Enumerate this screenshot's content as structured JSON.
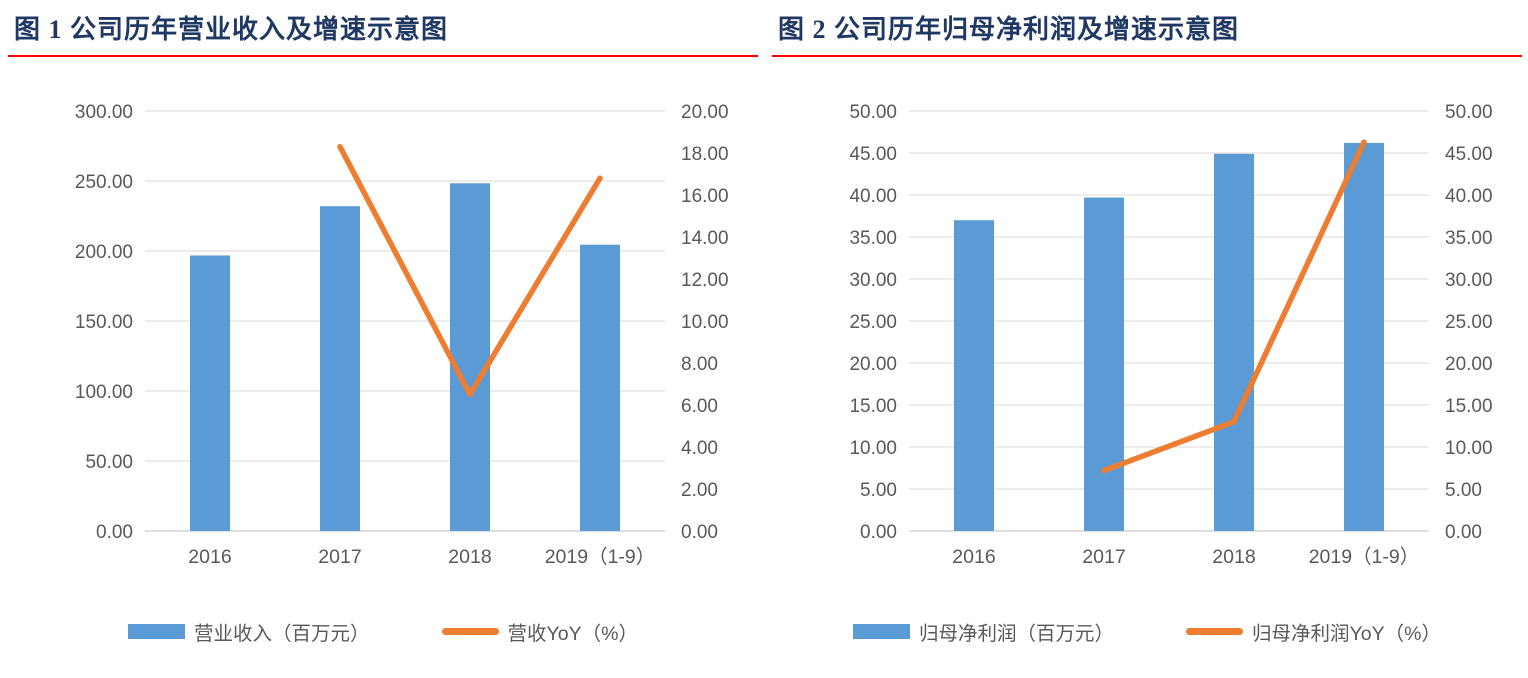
{
  "colors": {
    "title_navy": "#1F3864",
    "rule_red": "#FF0000",
    "bar_blue": "#5B9BD5",
    "line_orange": "#ED7D31",
    "axis_text": "#595959",
    "gridline": "#D9D9D9",
    "axis_line": "#BFBFBF",
    "background": "#FFFFFF"
  },
  "chart_data": [
    {
      "type": "bar+line",
      "title": "图 1 公司历年营业收入及增速示意图",
      "categories": [
        "2016",
        "2017",
        "2018",
        "2019（1-9）"
      ],
      "series": [
        {
          "name": "营业收入（百万元）",
          "type": "bar",
          "axis": "left",
          "color": "#5B9BD5",
          "values": [
            196.8,
            232.0,
            248.4,
            204.5
          ]
        },
        {
          "name": "营收YoY（%）",
          "type": "line",
          "axis": "right",
          "color": "#ED7D31",
          "values": [
            null,
            18.3,
            6.5,
            16.8
          ]
        }
      ],
      "left_axis": {
        "min": 0,
        "max": 300,
        "step": 50,
        "ticks": [
          "0.00",
          "50.00",
          "100.00",
          "150.00",
          "200.00",
          "250.00",
          "300.00"
        ]
      },
      "right_axis": {
        "min": 0,
        "max": 20,
        "step": 2,
        "ticks": [
          "0.00",
          "2.00",
          "4.00",
          "6.00",
          "8.00",
          "10.00",
          "12.00",
          "14.00",
          "16.00",
          "18.00",
          "20.00"
        ]
      },
      "grid": "horizontal gridlines aligned to left axis",
      "legend_position": "bottom"
    },
    {
      "type": "bar+line",
      "title": "图 2 公司历年归母净利润及增速示意图",
      "categories": [
        "2016",
        "2017",
        "2018",
        "2019（1-9）"
      ],
      "series": [
        {
          "name": "归母净利润（百万元）",
          "type": "bar",
          "axis": "left",
          "color": "#5B9BD5",
          "values": [
            37.0,
            39.7,
            44.9,
            46.2
          ]
        },
        {
          "name": "归母净利润YoY（%）",
          "type": "line",
          "axis": "right",
          "color": "#ED7D31",
          "values": [
            null,
            7.2,
            13.0,
            46.3
          ]
        }
      ],
      "left_axis": {
        "min": 0,
        "max": 50,
        "step": 5,
        "ticks": [
          "0.00",
          "5.00",
          "10.00",
          "15.00",
          "20.00",
          "25.00",
          "30.00",
          "35.00",
          "40.00",
          "45.00",
          "50.00"
        ]
      },
      "right_axis": {
        "min": 0,
        "max": 50,
        "step": 5,
        "ticks": [
          "0.00",
          "5.00",
          "10.00",
          "15.00",
          "20.00",
          "25.00",
          "30.00",
          "35.00",
          "40.00",
          "45.00",
          "50.00"
        ]
      },
      "grid": "horizontal gridlines aligned to left axis",
      "legend_position": "bottom"
    }
  ]
}
